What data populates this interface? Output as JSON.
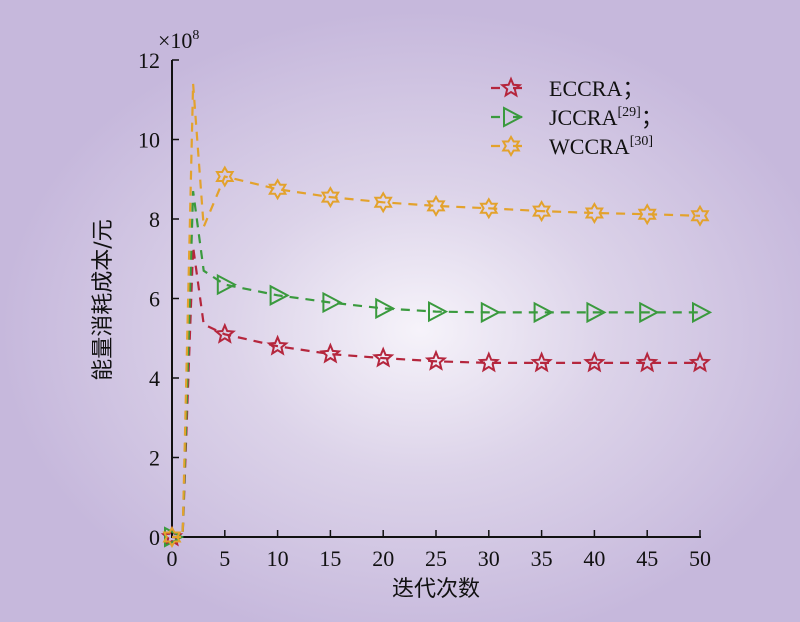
{
  "chart_data": {
    "type": "line",
    "title": "",
    "xlabel": "迭代次数",
    "ylabel": "能量消耗成本/元",
    "y_multiplier": "×10",
    "y_multiplier_exp": "8",
    "xlim": [
      0,
      50
    ],
    "ylim": [
      0,
      12
    ],
    "xticks": [
      0,
      5,
      10,
      15,
      20,
      25,
      30,
      35,
      40,
      45,
      50
    ],
    "yticks": [
      0,
      2,
      4,
      6,
      8,
      10,
      12
    ],
    "grid": false,
    "legend_position": "top-right",
    "series": [
      {
        "name": "ECCRA",
        "suffix": "；",
        "sup": "",
        "color": "#b5263d",
        "marker": "star5",
        "x": [
          0,
          1,
          2,
          3,
          5,
          10,
          15,
          20,
          25,
          30,
          35,
          40,
          45,
          50
        ],
        "values": [
          0,
          0,
          7.3,
          5.35,
          5.1,
          4.8,
          4.6,
          4.5,
          4.42,
          4.38,
          4.38,
          4.38,
          4.38,
          4.38
        ],
        "marker_x": [
          0,
          5,
          10,
          15,
          20,
          25,
          30,
          35,
          40,
          45,
          50
        ]
      },
      {
        "name": "JCCRA",
        "suffix": "；",
        "sup": "[29]",
        "color": "#3a9a3e",
        "marker": "triangle-right",
        "x": [
          0,
          1,
          2,
          3,
          5,
          10,
          15,
          20,
          25,
          30,
          35,
          40,
          45,
          50
        ],
        "values": [
          0,
          0,
          8.7,
          6.7,
          6.35,
          6.08,
          5.9,
          5.75,
          5.67,
          5.65,
          5.65,
          5.65,
          5.65,
          5.65
        ],
        "marker_x": [
          0,
          5,
          10,
          15,
          20,
          25,
          30,
          35,
          40,
          45,
          50
        ]
      },
      {
        "name": "WCCRA",
        "suffix": "",
        "sup": "[30]",
        "color": "#e3a22c",
        "marker": "hexagram",
        "x": [
          0,
          1,
          2,
          3,
          5,
          10,
          15,
          20,
          25,
          30,
          35,
          40,
          45,
          50
        ],
        "values": [
          0,
          0,
          11.4,
          7.8,
          9.07,
          8.75,
          8.55,
          8.42,
          8.33,
          8.27,
          8.2,
          8.15,
          8.12,
          8.08
        ],
        "marker_x": [
          0,
          5,
          10,
          15,
          20,
          25,
          30,
          35,
          40,
          45,
          50
        ]
      }
    ]
  }
}
